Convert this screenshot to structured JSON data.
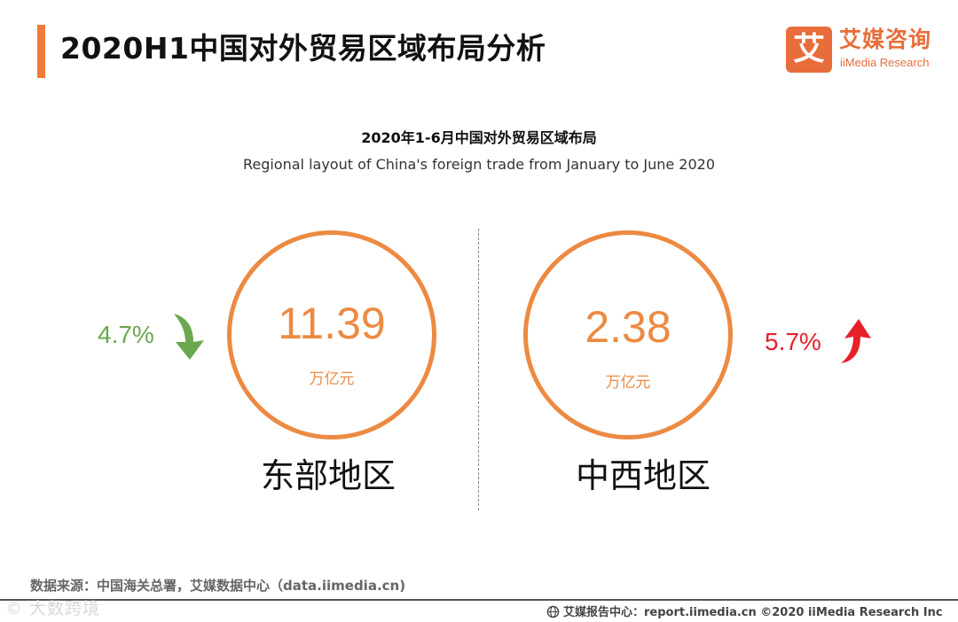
{
  "header": {
    "title": "2020H1中国对外贸易区域布局分析",
    "accent_color": "#f07a3a"
  },
  "logo": {
    "mark": "艾",
    "name_cn": "艾媒咨询",
    "name_en": "iiMedia Research",
    "color": "#e86d3a"
  },
  "subtitle": {
    "cn": "2020年1-6月中国对外贸易区域布局",
    "en": "Regional layout of China's foreign trade from January to June 2020"
  },
  "regions": [
    {
      "name": "东部地区",
      "value": "11.39",
      "unit": "万亿元",
      "change": "4.7%",
      "direction": "down",
      "arrow_icon": "arrow-down-icon",
      "change_color": "#6aa84f"
    },
    {
      "name": "中西地区",
      "value": "2.38",
      "unit": "万亿元",
      "change": "5.7%",
      "direction": "up",
      "arrow_icon": "arrow-up-icon",
      "change_color": "#e8202a"
    }
  ],
  "ring_color": "#ec8a42",
  "source": "数据来源：中国海关总署，艾媒数据中心（data.iimedia.cn)",
  "watermark": "© 大数跨境",
  "footer": {
    "text": "艾媒报告中心：report.iimedia.cn   ©2020  iiMedia Research  Inc",
    "icon": "globe-icon"
  }
}
